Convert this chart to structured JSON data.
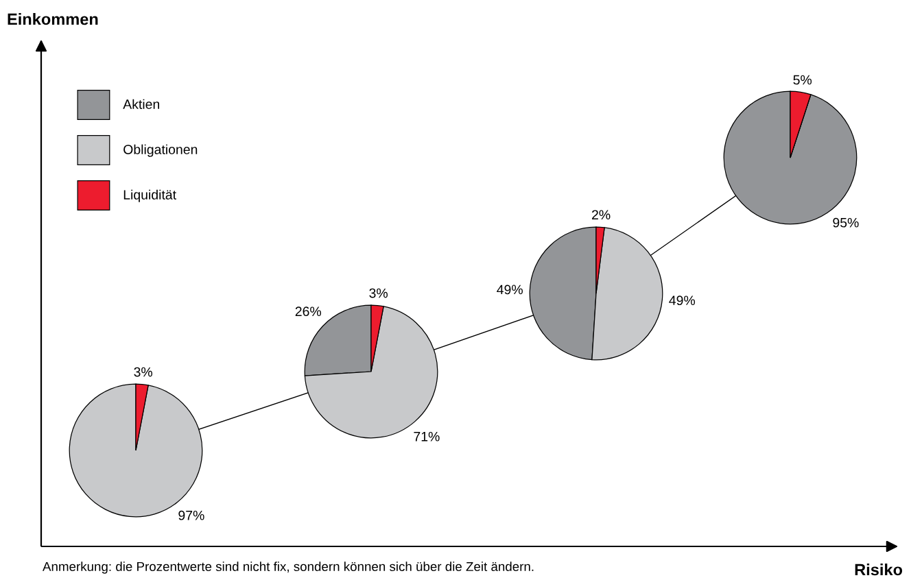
{
  "chart_data": {
    "type": "pie",
    "xlabel": "Risiko",
    "ylabel": "Einkommen",
    "annotations": [
      "Anmerkung: die Prozentwerte sind nicht fix, sondern können sich über die Zeit ändern."
    ],
    "categories": [
      "Aktien",
      "Obligationen",
      "Liquidität"
    ],
    "colors": [
      "#939598",
      "#c8c9cb",
      "#ed1c2e"
    ],
    "legend": "top left",
    "series": [
      {
        "values": [
          0,
          97,
          3
        ],
        "value_labels": [
          null,
          "97%",
          "3%"
        ]
      },
      {
        "values": [
          26,
          71,
          3
        ],
        "value_labels": [
          "26%",
          "71%",
          "3%"
        ]
      },
      {
        "values": [
          49,
          49,
          2
        ],
        "value_labels": [
          "49%",
          "49%",
          "2%"
        ]
      },
      {
        "values": [
          95,
          0,
          5
        ],
        "value_labels": [
          "95%",
          null,
          "5%"
        ]
      }
    ]
  }
}
